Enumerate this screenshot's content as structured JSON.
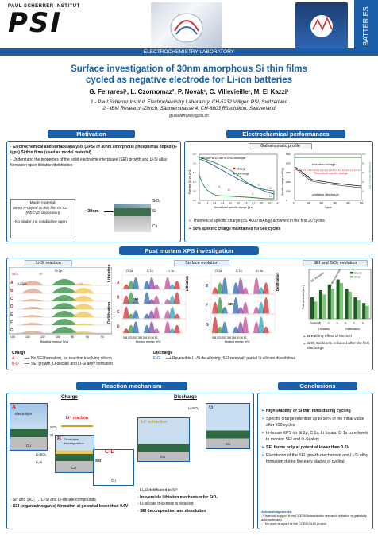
{
  "header": {
    "institute": "PAUL SCHERRER INSTITUT",
    "logo_letters": "PSI",
    "side_label": "BATTERIES",
    "lab": "ELECTROCHEMISTRY LABORATORY"
  },
  "title": {
    "line1": "Surface investigation of 30nm amorphous Si thin films",
    "line2": "cycled as negative electrode for Li-ion batteries"
  },
  "authors": "G. Ferraresi¹, L. Czornomaz², P. Novák¹, C. Villevieille¹, M. El Kazzi¹",
  "affiliations": [
    "1 - Paul Scherrer Institut, Electrochemistry Laboratory, CH-5232 Villigen PSI, Switzerland",
    "2 - IBM Research-Zürich, Säumerstrasse 4, CH-8803 Rüschlikon, Switzerland"
  ],
  "email": "giulio.ferraresi@psi.ch",
  "motivation": {
    "title": "Motivation",
    "bullets": [
      "Electrochemical and surface analysis (XPS) of 30nm amorphous phosphorus doped (n-type) Si thin films (used as model material)",
      "Understand the properties of the solid electrolyte interphase (SEI) growth and Li-Si alloy formation upon lithiation/delithiation"
    ],
    "model_box": {
      "title": "Model material:",
      "line1": "30nm P-doped Si thin film on Cu",
      "line2": "(PECVD deposition)",
      "line3": "- No binder, no conductive agent"
    },
    "thickness": "~30nm",
    "layers": [
      "SiO₂",
      "Si",
      "Cu"
    ]
  },
  "electrochem": {
    "title": "Electrochemical performances",
    "subtitle": "Galvanostatic profile",
    "left_plot": {
      "note": "1st cycle at 1C rate in LP30 electrolyte",
      "xlabel": "Normalized specific charge [a.u]",
      "ylabel": "Potential [V] vs. Li⁺/Li",
      "legend": [
        "Charge",
        "Discharge"
      ],
      "xticks": [
        "0.0",
        "0.1",
        "0.2",
        "0.3",
        "0.4",
        "0.5",
        "0.6",
        "0.7",
        "0.8",
        "0.9",
        "1.0"
      ],
      "yticks": [
        "0.0",
        "0.5",
        "1.0",
        "1.5",
        "2.0",
        "2.5"
      ],
      "points": [
        "A",
        "B",
        "C",
        "D",
        "E",
        "F",
        "G"
      ]
    },
    "right_plot": {
      "xlabel": "Cycle",
      "ylabel_left": "Specific charge [mAh/g]",
      "ylabel_right": "Coulombic efficiency [%]",
      "label_top": "reduction /charge",
      "label_theo": "Theoretical specific charge",
      "label_bottom": "oxidation /discharge",
      "xticks": [
        "0",
        "100",
        "200",
        "300",
        "400",
        "500"
      ],
      "yticks_left": [
        "0",
        "1000",
        "2000",
        "3000",
        "4000",
        "5000"
      ],
      "yticks_right": [
        "0",
        "20",
        "40",
        "60",
        "80",
        "100"
      ]
    },
    "bullets": [
      "Theoretical specific charge (ca. 4000 mAh/g) achieved in the first 20 cycles",
      "50% specific charge maintained for 500 cycles"
    ]
  },
  "xps": {
    "title": "Post mortem XPS investigation",
    "lisi_tab": "Li-Si reaction",
    "lisi_label": "Si 2p",
    "lisi_xlabel": "Binding energy [eV]",
    "lisi_xticks": [
      "106",
      "104",
      "102",
      "100",
      "98",
      "96",
      "94"
    ],
    "lisi_rows": [
      "A",
      "B",
      "C",
      "D",
      "E",
      "F",
      "G"
    ],
    "lisi_peaks": [
      "SiO₂",
      "Si⁰",
      "LiₓSiOᵧ",
      "LiₓSi"
    ],
    "lithiation": "Lithiation",
    "delithiation": "Delithiation",
    "surface_tab": "Surface evolution",
    "surface_cols": [
      "O 1s",
      "C 1s",
      "Li 1s"
    ],
    "surface_rows_top": [
      "A",
      "B",
      "C",
      "D"
    ],
    "surface_rows_bottom": [
      "E",
      "F",
      "G"
    ],
    "surface_xlabel": "Binding energy [eV]",
    "surface_xticks": "536 532   292 288 284   60 56 52",
    "sei_label": "SEI",
    "sei_tab": "SEI and SiO₂ evolution",
    "sei_legend": [
      "SiO₂/Si",
      "Si⁰/Si"
    ],
    "sei_ylabel": "Peak area ratio [a.u.]",
    "sei_xcats": [
      "Scaled A",
      "B",
      "C",
      "D",
      "E",
      "F",
      "G"
    ],
    "sei_labels": [
      "SEI thickness",
      "SEI decomposition"
    ],
    "sei_bullets": [
      "Breathing effect of the SEI",
      "SiO₂ thickness reduced after the first discharge"
    ],
    "charge_head": "Charge",
    "charge_lines": [
      {
        "key": "A",
        "text": "No SEI formation, no reaction involving silicon"
      },
      {
        "key": "B-D",
        "text": "SEI growth, Li-silicate and Li-Si alloy formation"
      }
    ],
    "discharge_head": "Discharge",
    "discharge_lines": [
      {
        "key": "E-G",
        "text": "Reversible Li-Si de-alloying, SEI removal, partial Li-silicate dissolution"
      }
    ]
  },
  "mechanism": {
    "title": "Reaction mechanism",
    "charge": "Charge",
    "discharge": "Discharge",
    "labels": {
      "a": "A",
      "electrolyte": "Electrolyte",
      "sio2": "SiO₂",
      "si": "Si",
      "cu": "Cu",
      "li_reaction": "Li⁺ reaction",
      "b": "B",
      "electrolyte_decomp": "Electrolyte decomposition",
      "cd": "C-D",
      "sei": "SEI",
      "lixsio": "LiₓSiOᵧ",
      "lixsi": "LiₓSi",
      "li_extraction": "Li⁺ extraction",
      "g": "G"
    },
    "charge_bullets": [
      "Si⁰ and SiO₂ → Li-Si and Li-silicate compounds",
      "SEI (organic/inorganic) formation at potential lower than 0.6V"
    ],
    "discharge_bullets": [
      "LiₓSi delithiated to Si⁰",
      "Irreversible lithiation mechanism for SiO₂",
      "Li-silicate thickness is reduced",
      "SEI decomposition and dissolution"
    ]
  },
  "conclusions": {
    "title": "Conclusions",
    "bullets": [
      "High stability of Si thin films during cycling",
      "Specific charge retention up to 50% of the initial value after 500 cycles",
      "In-house XPS on Si 2p, C 1s, Li 1s and O 1s core levels to monitor SEI and Li-Si alloy",
      "SEI forms only at potential lower than 0.6V",
      "Elucidation of the SEI growth mechanism and Li-Si alloy formation during the early stages of cycling"
    ],
    "ack_title": "Acknowledgements:",
    "ack_lines": [
      "- Financial support from CCEM/Swisselectric research initiative is gratefully acknowledged",
      "- This work is a part of the CCEM-SLIB project"
    ]
  },
  "colors": {
    "accent": "#1a5fa8",
    "red": "#d21e1e",
    "green": "#2d8a3e",
    "dark_green": "#1b5e20"
  }
}
